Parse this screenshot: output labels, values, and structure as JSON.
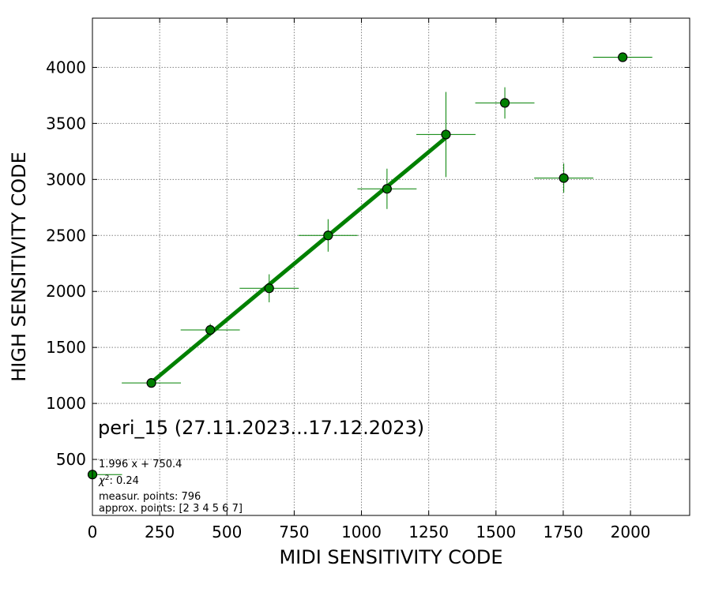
{
  "chart_data": {
    "type": "scatter",
    "xlabel": "MIDI SENSITIVITY CODE",
    "ylabel": "HIGH SENSITIVITY CODE",
    "xlim": [
      0,
      2220
    ],
    "ylim": [
      0,
      4440
    ],
    "xticks": [
      0,
      250,
      500,
      750,
      1000,
      1250,
      1500,
      1750,
      2000
    ],
    "yticks": [
      500,
      1000,
      1500,
      2000,
      2500,
      3000,
      3500,
      4000
    ],
    "grid": true,
    "colors": {
      "marker": "#008000",
      "marker_edge": "#000000",
      "fit_line": "#008000",
      "error_bars": "#008000"
    },
    "points": [
      {
        "x": 0,
        "y": 365,
        "xerr": 110,
        "yerr": 0
      },
      {
        "x": 219,
        "y": 1183,
        "xerr": 110,
        "yerr": 0
      },
      {
        "x": 438,
        "y": 1656,
        "xerr": 110,
        "yerr": 55
      },
      {
        "x": 657,
        "y": 2028,
        "xerr": 110,
        "yerr": 125
      },
      {
        "x": 876,
        "y": 2500,
        "xerr": 110,
        "yerr": 145
      },
      {
        "x": 1095,
        "y": 2916,
        "xerr": 110,
        "yerr": 180
      },
      {
        "x": 1314,
        "y": 3401,
        "xerr": 110,
        "yerr": 380
      },
      {
        "x": 1533,
        "y": 3683,
        "xerr": 110,
        "yerr": 140
      },
      {
        "x": 1752,
        "y": 3012,
        "xerr": 110,
        "yerr": 130
      },
      {
        "x": 1971,
        "y": 4091,
        "xerr": 110,
        "yerr": 0
      }
    ],
    "fit": {
      "slope": 1.996,
      "intercept": 750.4,
      "x_range": [
        219,
        1314
      ]
    },
    "annotations": {
      "title_in_plot": "peri_15 (27.11.2023...17.12.2023)",
      "fit_equation": "1.996 x + 750.4",
      "chi2_label": "χ",
      "chi2_value": ": 0.24",
      "measured_points": "measur. points: 796",
      "approx_points": "approx. points: [2 3 4 5 6 7]"
    }
  }
}
